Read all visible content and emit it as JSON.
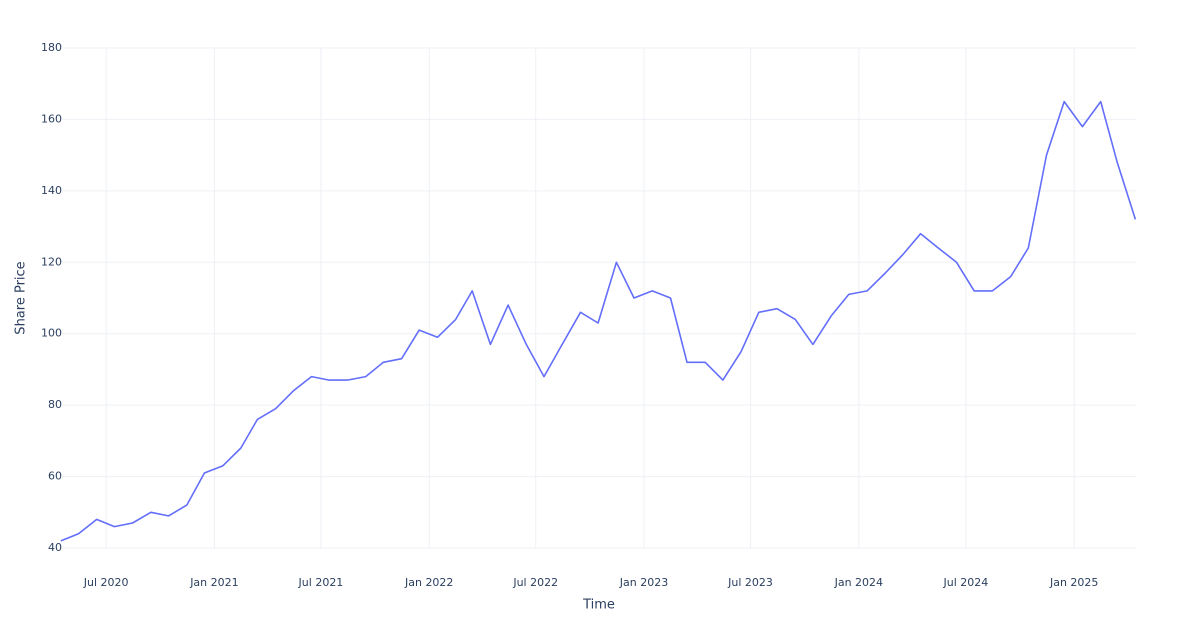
{
  "chart_data": {
    "type": "line",
    "x_label": "Time",
    "y_label": "Share Price",
    "x": [
      "2020-04",
      "2020-05",
      "2020-06",
      "2020-07",
      "2020-08",
      "2020-09",
      "2020-10",
      "2020-11",
      "2020-12",
      "2021-01",
      "2021-02",
      "2021-03",
      "2021-04",
      "2021-05",
      "2021-06",
      "2021-07",
      "2021-08",
      "2021-09",
      "2021-10",
      "2021-11",
      "2021-12",
      "2022-01",
      "2022-02",
      "2022-03",
      "2022-04",
      "2022-05",
      "2022-06",
      "2022-07",
      "2022-08",
      "2022-09",
      "2022-10",
      "2022-11",
      "2022-12",
      "2023-01",
      "2023-02",
      "2023-03",
      "2023-04",
      "2023-05",
      "2023-06",
      "2023-07",
      "2023-08",
      "2023-09",
      "2023-10",
      "2023-11",
      "2023-12",
      "2024-01",
      "2024-02",
      "2024-03",
      "2024-04",
      "2024-05",
      "2024-06",
      "2024-07",
      "2024-08",
      "2024-09",
      "2024-10",
      "2024-11",
      "2024-12",
      "2025-01",
      "2025-02",
      "2025-03",
      "2025-04"
    ],
    "series": [
      {
        "name": "Share Price",
        "color": "#636efa",
        "values": [
          42,
          44,
          48,
          46,
          47,
          50,
          49,
          52,
          61,
          63,
          68,
          76,
          79,
          84,
          88,
          87,
          87,
          88,
          92,
          93,
          101,
          99,
          104,
          112,
          97,
          108,
          97,
          88,
          97,
          106,
          103,
          120,
          110,
          112,
          110,
          92,
          92,
          87,
          95,
          106,
          107,
          104,
          97,
          105,
          111,
          112,
          117,
          122,
          128,
          124,
          120,
          112,
          112,
          116,
          124,
          150,
          165,
          158,
          165,
          148,
          132
        ]
      }
    ],
    "xlim": [
      "2020-04-17",
      "2025-04-16"
    ],
    "xticks": [
      {
        "value": "2020-07-01",
        "label": "Jul 2020"
      },
      {
        "value": "2021-01-01",
        "label": "Jan 2021"
      },
      {
        "value": "2021-07-01",
        "label": "Jul 2021"
      },
      {
        "value": "2022-01-01",
        "label": "Jan 2022"
      },
      {
        "value": "2022-07-01",
        "label": "Jul 2022"
      },
      {
        "value": "2023-01-01",
        "label": "Jan 2023"
      },
      {
        "value": "2023-07-01",
        "label": "Jul 2023"
      },
      {
        "value": "2024-01-01",
        "label": "Jan 2024"
      },
      {
        "value": "2024-07-01",
        "label": "Jul 2024"
      },
      {
        "value": "2025-01-01",
        "label": "Jan 2025"
      }
    ],
    "ylim": [
      40,
      180
    ],
    "yticks": [
      40,
      60,
      80,
      100,
      120,
      140,
      160,
      180
    ],
    "grid": true
  }
}
